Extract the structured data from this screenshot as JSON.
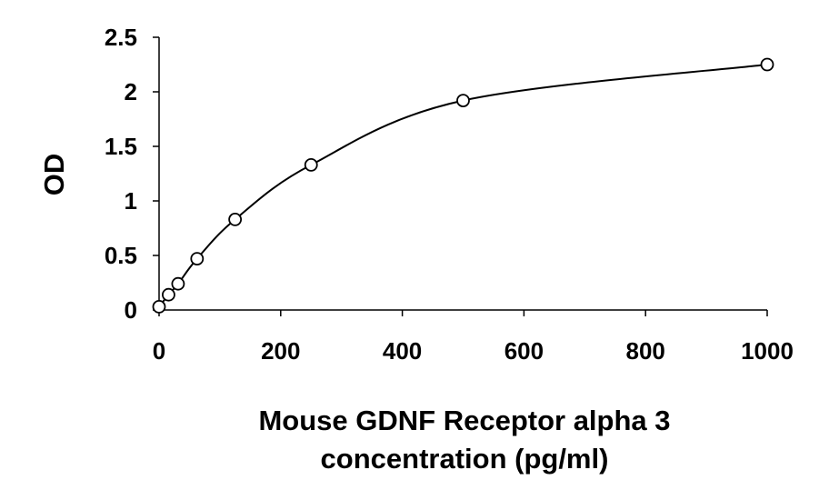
{
  "chart_data": {
    "type": "scatter",
    "title": "",
    "xlabel": [
      "Mouse GDNF Receptor alpha 3",
      "concentration (pg/ml)"
    ],
    "ylabel": "OD",
    "xlim": [
      0,
      1000
    ],
    "ylim": [
      0,
      2.5
    ],
    "x_ticks": [
      0,
      200,
      400,
      600,
      800,
      1000
    ],
    "y_ticks": [
      0,
      0.5,
      1,
      1.5,
      2,
      2.5
    ],
    "x_tick_labels": [
      "0",
      "200",
      "400",
      "600",
      "800",
      "1000"
    ],
    "y_tick_labels": [
      "0",
      "0.5",
      "1",
      "1.5",
      "2",
      "2.5"
    ],
    "grid": false,
    "legend": "none",
    "series": [
      {
        "marker": "open-circle",
        "line": "smooth",
        "x": [
          0,
          15.6,
          31.25,
          62.5,
          125,
          250,
          500,
          1000
        ],
        "y": [
          0.03,
          0.14,
          0.24,
          0.47,
          0.83,
          1.33,
          1.92,
          2.25
        ]
      }
    ],
    "colors": {
      "line": "#000000",
      "marker": "#000000"
    }
  }
}
